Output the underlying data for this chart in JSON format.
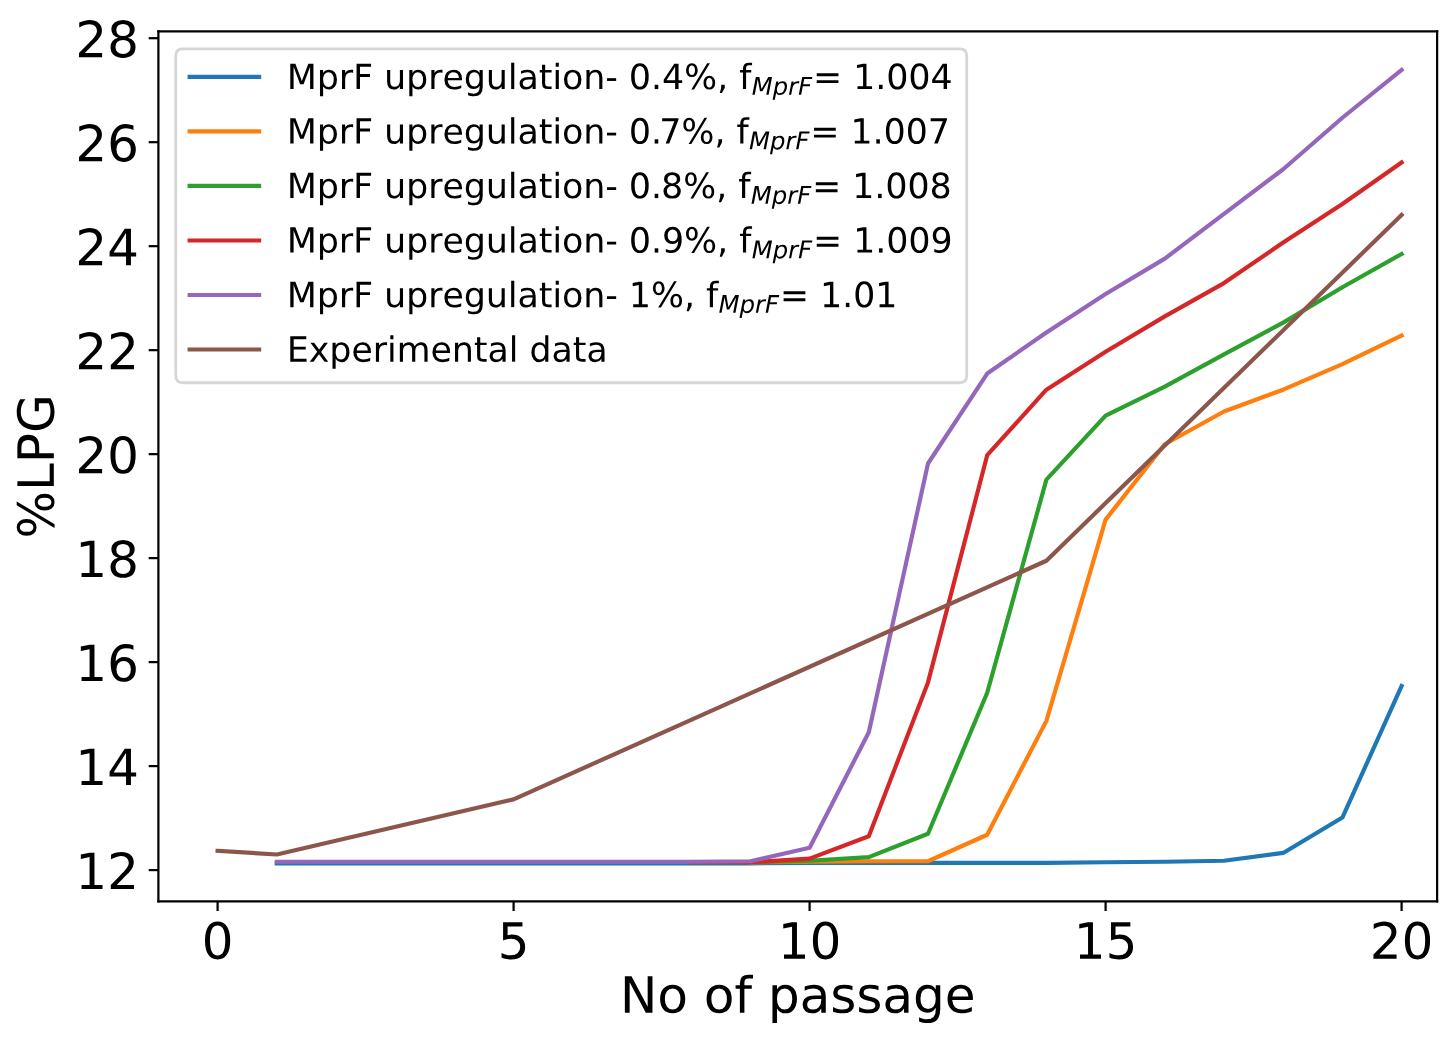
{
  "chart_data": {
    "type": "line",
    "xlabel": "No of passage",
    "ylabel": "%LPG",
    "xlim": [
      -1,
      20.6
    ],
    "ylim": [
      11.4,
      28.13
    ],
    "xticks": [
      0,
      5,
      10,
      15,
      20
    ],
    "yticks": [
      12,
      14,
      16,
      18,
      20,
      22,
      24,
      26,
      28
    ],
    "grid": false,
    "legend": "top left",
    "series": [
      {
        "name": "MprF upregulation- 0.4%, f$_{MprF}$= 1.004",
        "color": "#1f77b4",
        "x": [
          1,
          2,
          3,
          4,
          5,
          6,
          7,
          8,
          9,
          10,
          11,
          12,
          13,
          14,
          15,
          16,
          17,
          18,
          19,
          20
        ],
        "values": [
          12.13,
          12.13,
          12.13,
          12.13,
          12.13,
          12.13,
          12.13,
          12.13,
          12.13,
          12.14,
          12.14,
          12.14,
          12.14,
          12.14,
          12.15,
          12.16,
          12.18,
          12.33,
          13.01,
          15.54
        ]
      },
      {
        "name": "MprF upregulation- 0.7%, f$_{MprF}$= 1.007",
        "color": "#ff7f0e",
        "x": [
          9,
          10,
          11,
          12,
          13,
          14,
          15,
          16,
          17,
          18,
          19,
          20
        ],
        "values": [
          12.15,
          12.16,
          12.17,
          12.17,
          12.68,
          14.87,
          18.74,
          20.19,
          20.82,
          21.24,
          21.73,
          22.28
        ]
      },
      {
        "name": "MprF upregulation- 0.8%, f$_{MprF}$= 1.008",
        "color": "#2ca02c",
        "x": [
          8,
          9,
          10,
          11,
          12,
          13,
          14,
          15,
          16,
          17,
          18,
          19,
          20
        ],
        "values": [
          12.15,
          12.15,
          12.18,
          12.25,
          12.7,
          15.41,
          19.51,
          20.74,
          21.3,
          21.92,
          22.53,
          23.21,
          23.85
        ]
      },
      {
        "name": "MprF upregulation- 0.9%, f$_{MprF}$= 1.009",
        "color": "#d62728",
        "x": [
          8,
          9,
          10,
          11,
          12,
          13,
          14,
          15,
          16,
          17,
          18,
          19,
          20
        ],
        "values": [
          12.15,
          12.15,
          12.22,
          12.65,
          15.61,
          19.98,
          21.24,
          21.97,
          22.65,
          23.29,
          24.07,
          24.81,
          25.61
        ]
      },
      {
        "name": "MprF upregulation- 1%, f$_{MprF}$= 1.01",
        "color": "#9467bd",
        "x": [
          1,
          2,
          3,
          4,
          5,
          6,
          7,
          8,
          9,
          10,
          11,
          12,
          13,
          14,
          15,
          16,
          17,
          18,
          19,
          20
        ],
        "values": [
          12.16,
          12.16,
          12.16,
          12.16,
          12.16,
          12.16,
          12.16,
          12.16,
          12.17,
          12.43,
          14.65,
          19.82,
          21.55,
          22.34,
          23.08,
          23.76,
          24.62,
          25.48,
          26.47,
          27.39
        ]
      },
      {
        "name": "Experimental data",
        "color": "#8c564b",
        "x": [
          0,
          1,
          5,
          14,
          20
        ],
        "values": [
          12.37,
          12.3,
          13.36,
          17.95,
          24.6
        ]
      }
    ]
  }
}
